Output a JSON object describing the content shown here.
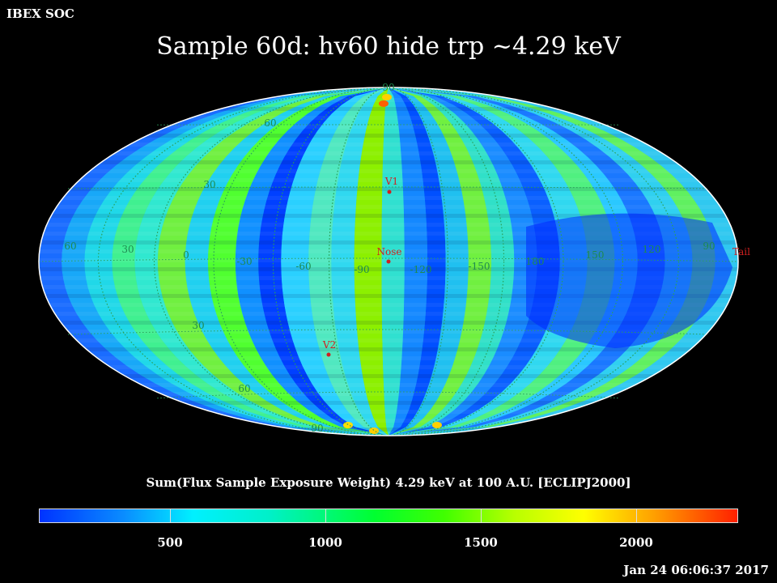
{
  "header": {
    "org_label": "IBEX SOC",
    "title": "Sample 60d: hv60 hide trp ~4.29 keV"
  },
  "map": {
    "projection": "mollweide",
    "graticule_labels": {
      "latitudes": [
        "90",
        "60",
        "30",
        "30",
        "60",
        "90"
      ],
      "longitudes": [
        "60",
        "30",
        "0",
        "-30",
        "-60",
        "-90",
        "-120",
        "-150",
        "180",
        "150",
        "120",
        "90"
      ]
    },
    "markers": [
      {
        "name": "Nose",
        "color": "#d02020"
      },
      {
        "name": "V1",
        "color": "#d02020"
      },
      {
        "name": "V2",
        "color": "#d02020"
      },
      {
        "name": "Tail",
        "color": "#d02020"
      }
    ],
    "colors": {
      "low": "#0000ff",
      "mid_low": "#00ffff",
      "mid": "#00ff00",
      "mid_high": "#ffff00",
      "high": "#ff0000",
      "graticule": "#2aa05a"
    }
  },
  "colorbar": {
    "title": "Sum(Flux Sample Exposure Weight)  4.29 keV at 100 A.U. [ECLIPJ2000]",
    "tick_labels": [
      "500",
      "1000",
      "1500",
      "2000"
    ],
    "min": 0,
    "max": 2250
  },
  "footer": {
    "timestamp": "Jan 24 06:06:37 2017"
  }
}
